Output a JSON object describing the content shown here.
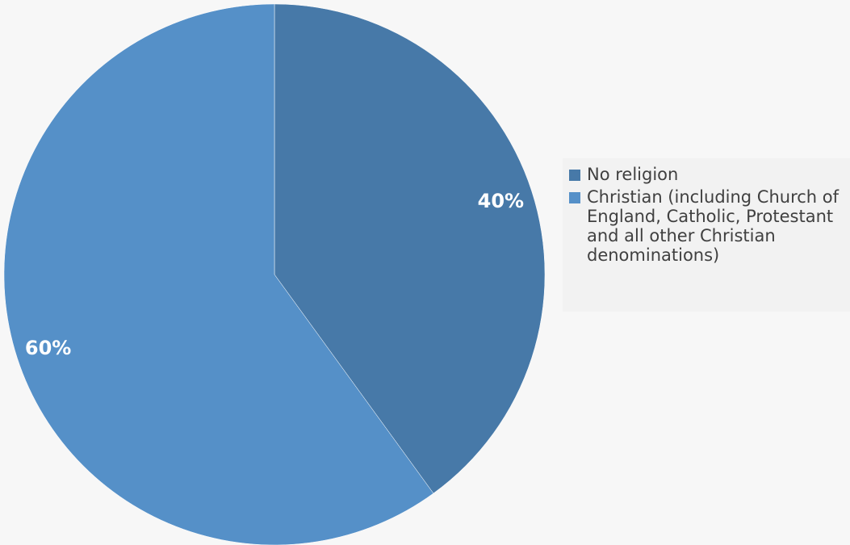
{
  "chart_data": {
    "type": "pie",
    "slices": [
      {
        "label": "No religion",
        "value": 40,
        "data_label": "40%",
        "color": "#4779a8"
      },
      {
        "label": "Christian (including Church of England, Catholic, Protestant and all other Christian denominations)",
        "value": 60,
        "data_label": "60%",
        "color": "#5590c8"
      }
    ],
    "start_angle_deg": 0,
    "direction": "clockwise",
    "legend_position": "right"
  },
  "legend": {
    "items": [
      {
        "label": "No religion",
        "color": "#4779a8"
      },
      {
        "label": "Christian (including Church of England, Catholic, Protestant and all other Christian denominations)",
        "color": "#5590c8"
      }
    ]
  }
}
